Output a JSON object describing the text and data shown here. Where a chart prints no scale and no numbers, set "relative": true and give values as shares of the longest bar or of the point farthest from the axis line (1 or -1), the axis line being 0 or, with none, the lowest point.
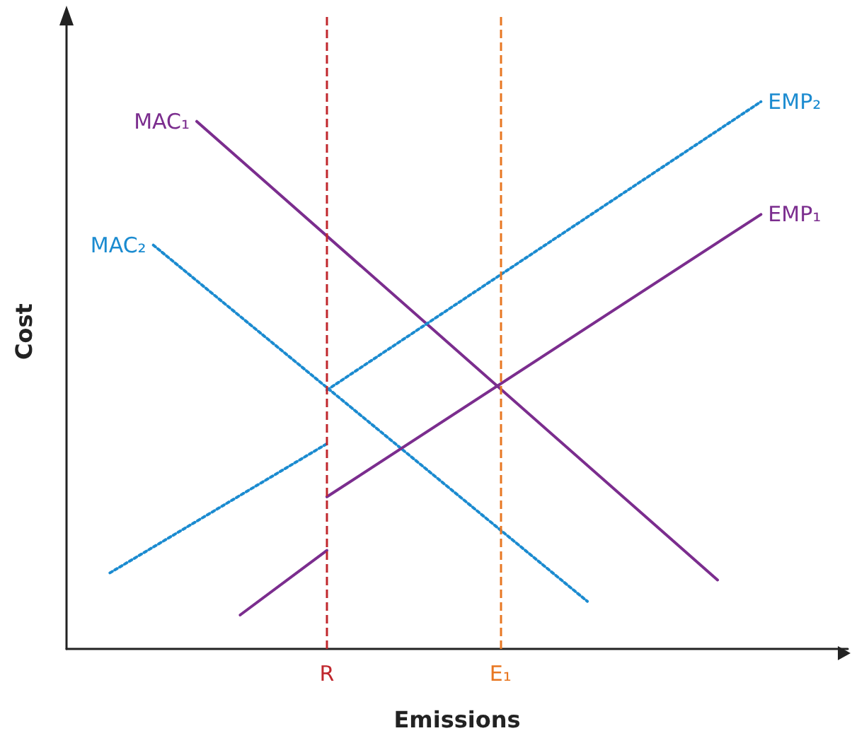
{
  "chart_data": {
    "type": "line",
    "relative": true,
    "xlabel": "Emissions",
    "ylabel": "Cost",
    "grid": false,
    "legend": false,
    "marker": "none",
    "categories": [
      null,
      null,
      null,
      null,
      null,
      null,
      "R",
      null,
      null,
      null,
      "E₁",
      null,
      null,
      null,
      null,
      null,
      null,
      null,
      null
    ],
    "series": [
      {
        "name": "MAC₁",
        "color": "#7b2d8e",
        "line_style": "solid",
        "values": [
          null,
          null,
          null,
          0.964,
          null,
          null,
          null,
          null,
          null,
          null,
          null,
          null,
          null,
          null,
          null,
          0.126,
          null,
          null,
          null
        ]
      },
      {
        "name": "MAC₂",
        "color": "#1b8bd0",
        "line_style": "dotted",
        "values": [
          null,
          null,
          0.738,
          null,
          null,
          null,
          null,
          null,
          null,
          null,
          null,
          null,
          0.087,
          null,
          null,
          null,
          null,
          null,
          null
        ]
      },
      {
        "color": "#7b2d8e",
        "line_style": "solid",
        "values": [
          null,
          null,
          null,
          null,
          0.062,
          null,
          0.18,
          null,
          null,
          null,
          null,
          null,
          null,
          null,
          null,
          null,
          null,
          null,
          null
        ]
      },
      {
        "name": "EMP₁",
        "color": "#7b2d8e",
        "line_style": "solid",
        "values": [
          null,
          null,
          null,
          null,
          null,
          null,
          0.278,
          null,
          null,
          null,
          null,
          null,
          null,
          null,
          null,
          null,
          0.794,
          null,
          null
        ]
      },
      {
        "color": "#1b8bd0",
        "line_style": "dotted",
        "values": [
          null,
          0.139,
          null,
          null,
          null,
          null,
          0.375,
          null,
          null,
          null,
          null,
          null,
          null,
          null,
          null,
          null,
          null,
          null,
          null
        ]
      },
      {
        "name": "EMP₂",
        "color": "#1b8bd0",
        "line_style": "dotted",
        "values": [
          null,
          null,
          null,
          null,
          null,
          null,
          0.473,
          null,
          null,
          null,
          null,
          null,
          null,
          null,
          null,
          null,
          1,
          null,
          null
        ]
      }
    ],
    "ref_lines": [
      {
        "axis": "x",
        "value": "R",
        "color": "#c0272d",
        "line_style": "dashed"
      },
      {
        "axis": "x",
        "value": "E₁",
        "color": "#e87722",
        "line_style": "dashed"
      }
    ]
  }
}
